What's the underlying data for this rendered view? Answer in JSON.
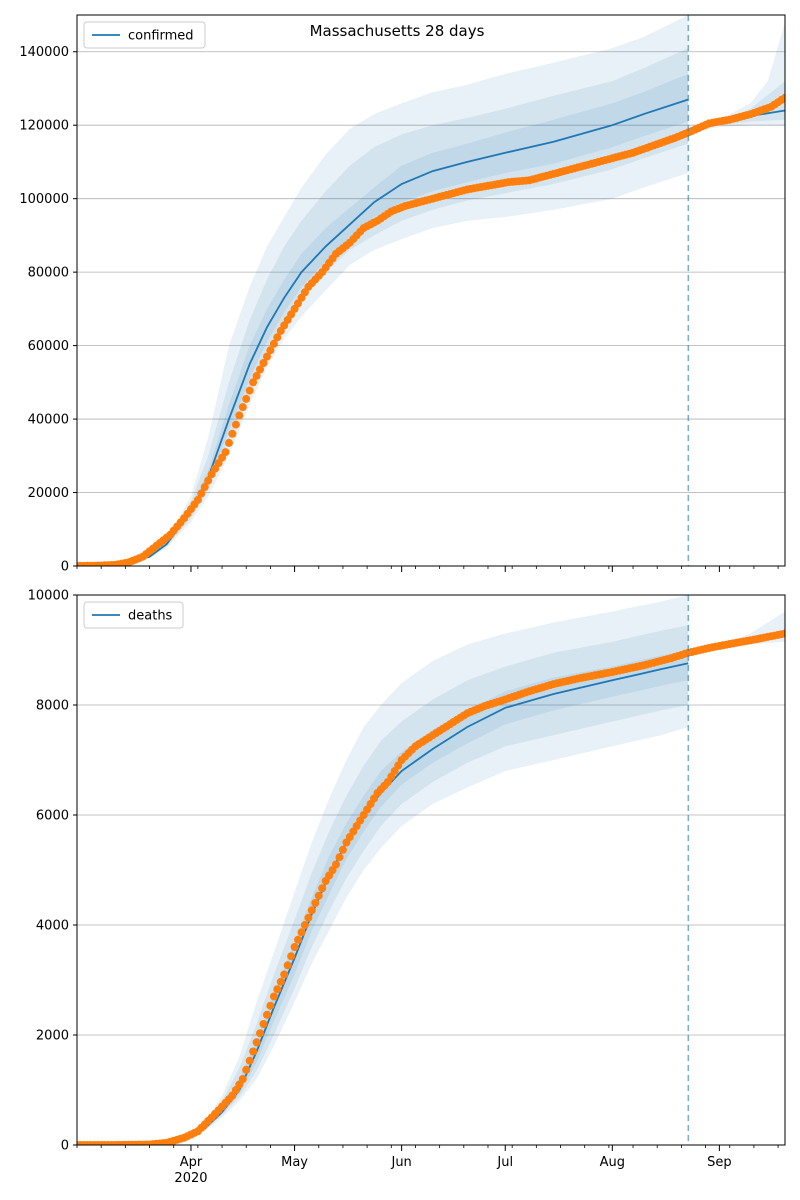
{
  "figure_title": "Massachusetts 28 days",
  "colors": {
    "model_line": "#1f77b4",
    "observed_points": "#ff7f0e",
    "band": "#1f77b4",
    "grid": "#b0b0b0",
    "forecast_marker": "#1f77b4"
  },
  "chart_data": [
    {
      "type": "line",
      "name": "confirmed-panel",
      "legend": "confirmed",
      "legend_position": "top-left",
      "grid": "horizontal",
      "title": "Massachusetts 28 days",
      "xlabel": "",
      "ylabel": "",
      "xlim": [
        "2020-02-28",
        "2020-09-20"
      ],
      "ylim": [
        0,
        150000
      ],
      "yticks": [
        0,
        20000,
        40000,
        60000,
        80000,
        100000,
        120000,
        140000
      ],
      "ytick_labels": [
        "0",
        "20000",
        "40000",
        "60000",
        "80000",
        "100000",
        "120000",
        "140000"
      ],
      "forecast_start": "2020-08-23",
      "model": {
        "x": [
          "2020-02-28",
          "2020-03-10",
          "2020-03-20",
          "2020-03-25",
          "2020-04-01",
          "2020-04-06",
          "2020-04-12",
          "2020-04-18",
          "2020-04-23",
          "2020-04-28",
          "2020-05-03",
          "2020-05-10",
          "2020-05-17",
          "2020-05-24",
          "2020-06-01",
          "2020-06-10",
          "2020-06-20",
          "2020-07-01",
          "2020-07-15",
          "2020-08-01",
          "2020-08-10",
          "2020-08-23"
        ],
        "values": [
          0,
          300,
          2500,
          6000,
          15000,
          24000,
          40000,
          55000,
          65000,
          73000,
          80000,
          87000,
          93000,
          99000,
          104000,
          107500,
          110000,
          112500,
          115500,
          120000,
          123000,
          127000
        ]
      },
      "model_post": {
        "x": [
          "2020-08-23",
          "2020-09-01",
          "2020-09-10",
          "2020-09-20"
        ],
        "values": [
          118000,
          120500,
          122500,
          124000
        ]
      },
      "bands": [
        {
          "label": "band-outer",
          "x": [
            "2020-03-10",
            "2020-03-20",
            "2020-03-25",
            "2020-04-01",
            "2020-04-06",
            "2020-04-12",
            "2020-04-18",
            "2020-04-23",
            "2020-04-28",
            "2020-05-03",
            "2020-05-10",
            "2020-05-17",
            "2020-05-24",
            "2020-06-01",
            "2020-06-10",
            "2020-06-20",
            "2020-07-01",
            "2020-07-15",
            "2020-08-01",
            "2020-08-10",
            "2020-08-23"
          ],
          "lower": [
            0,
            2000,
            5000,
            12000,
            19000,
            30000,
            44000,
            54000,
            62000,
            68000,
            75000,
            82000,
            86000,
            89000,
            92000,
            94000,
            95000,
            97000,
            100000,
            103000,
            107000
          ],
          "upper": [
            600,
            3200,
            7500,
            19000,
            35000,
            60000,
            76000,
            87000,
            95000,
            103000,
            112000,
            119000,
            123000,
            126000,
            129000,
            131000,
            134000,
            137000,
            141000,
            144000,
            150000
          ]
        },
        {
          "label": "band-middle",
          "x": [
            "2020-03-10",
            "2020-03-20",
            "2020-03-25",
            "2020-04-01",
            "2020-04-06",
            "2020-04-12",
            "2020-04-18",
            "2020-04-23",
            "2020-04-28",
            "2020-05-03",
            "2020-05-10",
            "2020-05-17",
            "2020-05-24",
            "2020-06-01",
            "2020-06-10",
            "2020-06-20",
            "2020-07-01",
            "2020-07-15",
            "2020-08-01",
            "2020-08-10",
            "2020-08-23"
          ],
          "lower": [
            100,
            2200,
            5400,
            13000,
            21000,
            34000,
            48000,
            58000,
            66000,
            73000,
            80000,
            86000,
            90000,
            94000,
            97000,
            99500,
            101500,
            104000,
            108000,
            111000,
            115000
          ],
          "upper": [
            500,
            2900,
            6900,
            17500,
            30000,
            50000,
            67000,
            78000,
            87000,
            94000,
            102000,
            109000,
            114000,
            117500,
            120000,
            122000,
            124500,
            128000,
            132000,
            135500,
            141000
          ]
        },
        {
          "label": "band-inner",
          "x": [
            "2020-03-10",
            "2020-03-20",
            "2020-03-25",
            "2020-04-01",
            "2020-04-06",
            "2020-04-12",
            "2020-04-18",
            "2020-04-23",
            "2020-04-28",
            "2020-05-03",
            "2020-05-10",
            "2020-05-17",
            "2020-05-24",
            "2020-06-01",
            "2020-06-10",
            "2020-06-20",
            "2020-07-01",
            "2020-07-15",
            "2020-08-01",
            "2020-08-10",
            "2020-08-23"
          ],
          "lower": [
            200,
            2350,
            5700,
            14000,
            22500,
            37000,
            51000,
            61000,
            69000,
            76000,
            83000,
            89500,
            95000,
            99000,
            102000,
            104500,
            107000,
            109500,
            114000,
            117000,
            121000
          ],
          "upper": [
            400,
            2650,
            6300,
            16000,
            26000,
            44000,
            60000,
            70000,
            78000,
            85000,
            92000,
            97500,
            103000,
            109000,
            112500,
            115000,
            118000,
            121500,
            126000,
            129000,
            134000
          ]
        }
      ],
      "bands_post": [
        {
          "label": "band-outer-post",
          "x": [
            "2020-08-23",
            "2020-09-01",
            "2020-09-10",
            "2020-09-15",
            "2020-09-20"
          ],
          "lower": [
            118000,
            119500,
            120000,
            120000,
            120000
          ],
          "upper": [
            118000,
            121500,
            126000,
            132000,
            148000
          ]
        },
        {
          "label": "band-inner-post",
          "x": [
            "2020-08-23",
            "2020-09-01",
            "2020-09-10",
            "2020-09-20"
          ],
          "lower": [
            118000,
            120000,
            121000,
            121500
          ],
          "upper": [
            118000,
            121000,
            124500,
            132000
          ]
        }
      ],
      "observed": {
        "x": [
          "2020-02-28",
          "2020-03-05",
          "2020-03-10",
          "2020-03-14",
          "2020-03-18",
          "2020-03-22",
          "2020-03-26",
          "2020-03-30",
          "2020-04-03",
          "2020-04-07",
          "2020-04-11",
          "2020-04-15",
          "2020-04-19",
          "2020-04-23",
          "2020-04-27",
          "2020-05-01",
          "2020-05-05",
          "2020-05-09",
          "2020-05-13",
          "2020-05-17",
          "2020-05-21",
          "2020-05-25",
          "2020-05-29",
          "2020-06-02",
          "2020-06-08",
          "2020-06-14",
          "2020-06-20",
          "2020-06-26",
          "2020-07-02",
          "2020-07-08",
          "2020-07-14",
          "2020-07-20",
          "2020-07-26",
          "2020-08-01",
          "2020-08-07",
          "2020-08-13",
          "2020-08-19",
          "2020-08-23",
          "2020-08-29",
          "2020-09-04",
          "2020-09-10",
          "2020-09-16",
          "2020-09-20"
        ],
        "values": [
          0,
          100,
          300,
          1000,
          2500,
          5500,
          8500,
          13000,
          18000,
          25000,
          31000,
          41000,
          50000,
          57000,
          64000,
          70000,
          76000,
          80000,
          85000,
          88000,
          92000,
          94000,
          96500,
          98000,
          99500,
          101000,
          102500,
          103500,
          104500,
          105000,
          106500,
          108000,
          109500,
          111000,
          112500,
          114500,
          116500,
          118000,
          120500,
          121500,
          123000,
          125000,
          127500
        ]
      }
    },
    {
      "type": "line",
      "name": "deaths-panel",
      "legend": "deaths",
      "legend_position": "top-left",
      "grid": "horizontal",
      "xlabel": "",
      "ylabel": "",
      "xlim": [
        "2020-02-28",
        "2020-09-20"
      ],
      "ylim": [
        0,
        10000
      ],
      "yticks": [
        0,
        2000,
        4000,
        6000,
        8000,
        10000
      ],
      "ytick_labels": [
        "0",
        "2000",
        "4000",
        "6000",
        "8000",
        "10000"
      ],
      "xtick_labels": [
        {
          "date": "2020-04-01",
          "label": "Apr",
          "sublabel": "2020"
        },
        {
          "date": "2020-05-01",
          "label": "May"
        },
        {
          "date": "2020-06-01",
          "label": "Jun"
        },
        {
          "date": "2020-07-01",
          "label": "Jul"
        },
        {
          "date": "2020-08-01",
          "label": "Aug"
        },
        {
          "date": "2020-09-01",
          "label": "Sep"
        }
      ],
      "forecast_start": "2020-08-23",
      "model": {
        "x": [
          "2020-02-28",
          "2020-03-20",
          "2020-03-30",
          "2020-04-05",
          "2020-04-10",
          "2020-04-15",
          "2020-04-20",
          "2020-04-25",
          "2020-05-01",
          "2020-05-06",
          "2020-05-11",
          "2020-05-16",
          "2020-05-21",
          "2020-05-26",
          "2020-06-01",
          "2020-06-10",
          "2020-06-20",
          "2020-07-01",
          "2020-07-15",
          "2020-08-01",
          "2020-08-15",
          "2020-08-23"
        ],
        "values": [
          0,
          20,
          100,
          300,
          600,
          1000,
          1700,
          2500,
          3400,
          4200,
          4900,
          5500,
          6000,
          6400,
          6800,
          7200,
          7600,
          7950,
          8200,
          8450,
          8650,
          8760
        ]
      },
      "bands": [
        {
          "label": "band-outer",
          "x": [
            "2020-03-25",
            "2020-04-01",
            "2020-04-05",
            "2020-04-10",
            "2020-04-15",
            "2020-04-20",
            "2020-04-25",
            "2020-05-01",
            "2020-05-06",
            "2020-05-11",
            "2020-05-16",
            "2020-05-21",
            "2020-05-26",
            "2020-06-01",
            "2020-06-10",
            "2020-06-20",
            "2020-07-01",
            "2020-07-15",
            "2020-08-01",
            "2020-08-15",
            "2020-08-23"
          ],
          "lower": [
            40,
            150,
            250,
            500,
            800,
            1200,
            1800,
            2600,
            3300,
            3900,
            4500,
            5000,
            5400,
            5800,
            6200,
            6500,
            6800,
            7000,
            7250,
            7450,
            7600
          ],
          "upper": [
            90,
            260,
            420,
            900,
            1600,
            2600,
            3500,
            4600,
            5500,
            6300,
            7000,
            7600,
            8000,
            8400,
            8800,
            9100,
            9300,
            9500,
            9700,
            9880,
            10000
          ]
        },
        {
          "label": "band-middle",
          "x": [
            "2020-03-25",
            "2020-04-01",
            "2020-04-05",
            "2020-04-10",
            "2020-04-15",
            "2020-04-20",
            "2020-04-25",
            "2020-05-01",
            "2020-05-06",
            "2020-05-11",
            "2020-05-16",
            "2020-05-21",
            "2020-05-26",
            "2020-06-01",
            "2020-06-10",
            "2020-06-20",
            "2020-07-01",
            "2020-07-15",
            "2020-08-01",
            "2020-08-15",
            "2020-08-23"
          ],
          "lower": [
            50,
            170,
            270,
            540,
            870,
            1350,
            2000,
            2850,
            3600,
            4250,
            4850,
            5350,
            5800,
            6200,
            6600,
            6950,
            7250,
            7450,
            7700,
            7900,
            8000
          ],
          "upper": [
            80,
            240,
            380,
            800,
            1400,
            2200,
            3100,
            4100,
            4950,
            5700,
            6350,
            6900,
            7350,
            7700,
            8100,
            8450,
            8700,
            8950,
            9150,
            9350,
            9450
          ]
        },
        {
          "label": "band-inner",
          "x": [
            "2020-03-25",
            "2020-04-01",
            "2020-04-05",
            "2020-04-10",
            "2020-04-15",
            "2020-04-20",
            "2020-04-25",
            "2020-05-01",
            "2020-05-06",
            "2020-05-11",
            "2020-05-16",
            "2020-05-21",
            "2020-05-26",
            "2020-06-01",
            "2020-06-10",
            "2020-06-20",
            "2020-07-01",
            "2020-07-15",
            "2020-08-01",
            "2020-08-15",
            "2020-08-23"
          ],
          "lower": [
            60,
            190,
            285,
            570,
            930,
            1500,
            2250,
            3100,
            3900,
            4550,
            5200,
            5700,
            6150,
            6550,
            6950,
            7300,
            7650,
            7900,
            8150,
            8350,
            8450
          ],
          "upper": [
            70,
            220,
            340,
            700,
            1200,
            1900,
            2750,
            3700,
            4500,
            5250,
            5850,
            6350,
            6800,
            7150,
            7550,
            7900,
            8250,
            8500,
            8700,
            8900,
            9000
          ]
        }
      ],
      "bands_post": [
        {
          "label": "band-outer-post",
          "x": [
            "2020-08-23",
            "2020-09-01",
            "2020-09-10",
            "2020-09-20"
          ],
          "lower": [
            8950,
            9050,
            9100,
            9150
          ],
          "upper": [
            8950,
            9100,
            9300,
            9700
          ]
        }
      ],
      "observed": {
        "x": [
          "2020-02-28",
          "2020-03-10",
          "2020-03-20",
          "2020-03-25",
          "2020-03-30",
          "2020-04-03",
          "2020-04-07",
          "2020-04-10",
          "2020-04-13",
          "2020-04-16",
          "2020-04-19",
          "2020-04-22",
          "2020-04-25",
          "2020-04-28",
          "2020-05-01",
          "2020-05-04",
          "2020-05-07",
          "2020-05-10",
          "2020-05-13",
          "2020-05-16",
          "2020-05-19",
          "2020-05-22",
          "2020-05-25",
          "2020-05-28",
          "2020-06-01",
          "2020-06-05",
          "2020-06-10",
          "2020-06-15",
          "2020-06-20",
          "2020-06-25",
          "2020-07-01",
          "2020-07-08",
          "2020-07-15",
          "2020-07-22",
          "2020-08-01",
          "2020-08-10",
          "2020-08-18",
          "2020-08-23",
          "2020-08-30",
          "2020-09-05",
          "2020-09-12",
          "2020-09-20"
        ],
        "values": [
          0,
          0,
          10,
          40,
          130,
          250,
          500,
          700,
          900,
          1200,
          1700,
          2200,
          2700,
          3100,
          3600,
          4000,
          4400,
          4800,
          5100,
          5500,
          5800,
          6100,
          6400,
          6600,
          7000,
          7250,
          7450,
          7650,
          7850,
          7980,
          8100,
          8250,
          8380,
          8480,
          8600,
          8720,
          8850,
          8950,
          9050,
          9120,
          9200,
          9300
        ]
      }
    }
  ]
}
